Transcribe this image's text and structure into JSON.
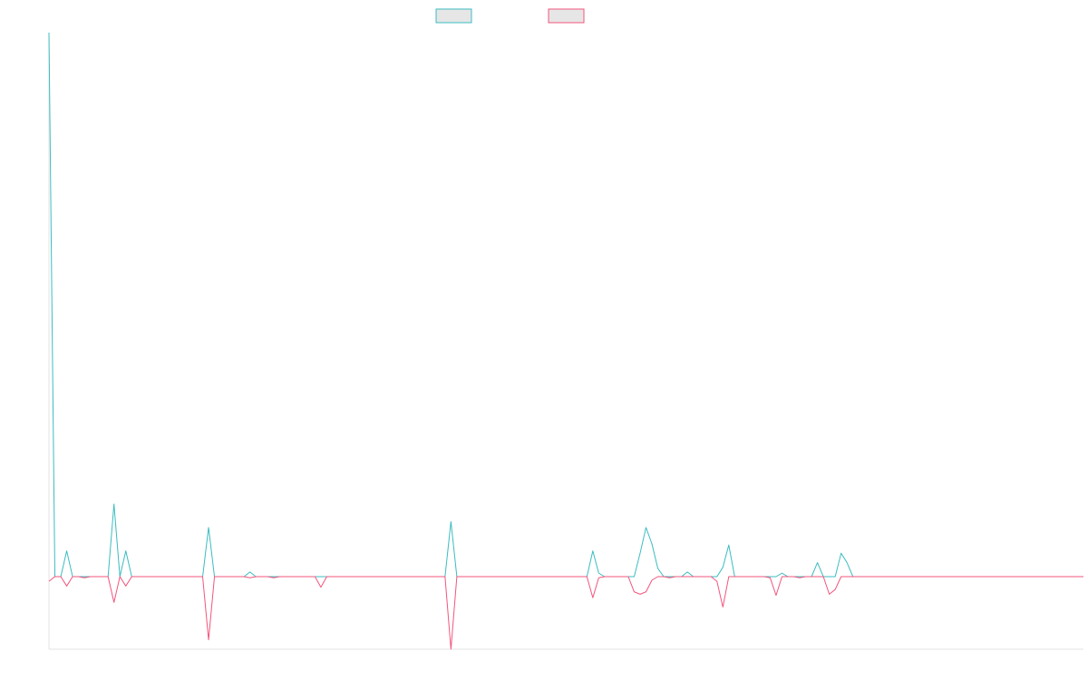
{
  "chart_data": {
    "type": "line",
    "title": "",
    "xlabel": "",
    "ylabel": "",
    "grid": false,
    "legend_position": "top-center",
    "ylim": [
      -62,
      465
    ],
    "x": [
      0,
      1,
      2,
      3,
      4,
      5,
      6,
      7,
      8,
      9,
      10,
      11,
      12,
      13,
      14,
      15,
      16,
      17,
      18,
      19,
      20,
      21,
      22,
      23,
      24,
      25,
      26,
      27,
      28,
      29,
      30,
      31,
      32,
      33,
      34,
      35,
      36,
      37,
      38,
      39,
      40,
      41,
      42,
      43,
      44,
      45,
      46,
      47,
      48,
      49,
      50,
      51,
      52,
      53,
      54,
      55,
      56,
      57,
      58,
      59,
      60,
      61,
      62,
      63,
      64,
      65,
      66,
      67,
      68,
      69,
      70,
      71,
      72,
      73,
      74,
      75,
      76,
      77,
      78,
      79,
      80,
      81,
      82,
      83,
      84,
      85,
      86,
      87,
      88,
      89,
      90,
      91,
      92,
      93,
      94,
      95,
      96,
      97,
      98,
      99,
      100,
      101,
      102,
      103,
      104,
      105,
      106,
      107,
      108,
      109,
      110,
      111,
      112,
      113,
      114,
      115,
      116,
      117,
      118,
      119,
      120,
      121,
      122,
      123,
      124,
      125,
      126,
      127,
      128,
      129,
      130,
      131,
      132,
      133,
      134,
      135,
      136,
      137,
      138,
      139,
      140,
      141,
      142,
      143,
      144,
      145,
      146,
      147,
      148,
      149,
      150,
      151,
      152,
      153,
      154,
      155,
      156,
      157,
      158,
      159,
      160,
      161,
      162,
      163,
      164,
      165,
      166,
      167,
      168,
      169,
      170,
      171,
      172,
      173,
      174,
      175
    ],
    "series": [
      {
        "color": "#3bbcc0",
        "values": [
          465,
          0,
          0,
          22,
          0,
          0,
          0,
          0,
          0,
          0,
          0,
          62,
          0,
          22,
          0,
          0,
          0,
          0,
          0,
          0,
          0,
          0,
          0,
          0,
          0,
          0,
          0,
          42,
          0,
          0,
          0,
          0,
          0,
          0,
          4,
          0,
          0,
          0,
          0,
          0,
          0,
          0,
          0,
          0,
          0,
          0,
          0,
          0,
          0,
          0,
          0,
          0,
          0,
          0,
          0,
          0,
          0,
          0,
          0,
          0,
          0,
          0,
          0,
          0,
          0,
          0,
          0,
          0,
          47,
          0,
          0,
          0,
          0,
          0,
          0,
          0,
          0,
          0,
          0,
          0,
          0,
          0,
          0,
          0,
          0,
          0,
          0,
          0,
          0,
          0,
          0,
          0,
          22,
          3,
          0,
          0,
          0,
          0,
          0,
          0,
          20,
          42,
          28,
          7,
          0,
          0,
          0,
          0,
          4,
          0,
          0,
          0,
          0,
          0,
          8,
          27,
          0,
          0,
          0,
          0,
          0,
          0,
          0,
          0,
          3,
          0,
          0,
          0,
          0,
          0,
          12,
          0,
          0,
          0,
          20,
          12,
          0,
          0,
          0,
          0,
          0,
          0,
          0,
          0,
          0,
          0,
          0,
          0,
          0,
          0,
          0,
          0,
          0,
          0,
          0,
          0,
          0,
          0,
          0,
          0,
          0,
          0,
          0,
          0,
          0,
          0,
          0,
          0,
          0,
          0,
          0,
          0,
          0,
          0,
          0,
          0
        ]
      },
      {
        "color": "#f2557c",
        "values": [
          -4,
          0,
          0,
          -8,
          0,
          0,
          -1,
          0,
          0,
          0,
          0,
          -22,
          0,
          -8,
          0,
          0,
          0,
          0,
          0,
          0,
          0,
          0,
          0,
          0,
          0,
          0,
          0,
          -54,
          0,
          0,
          0,
          0,
          0,
          0,
          -1,
          0,
          0,
          0,
          -1,
          0,
          0,
          0,
          0,
          0,
          0,
          0,
          -9,
          0,
          0,
          0,
          0,
          0,
          0,
          0,
          0,
          0,
          0,
          0,
          0,
          0,
          0,
          0,
          0,
          0,
          0,
          0,
          0,
          0,
          -62,
          0,
          0,
          0,
          0,
          0,
          0,
          0,
          0,
          0,
          0,
          0,
          0,
          0,
          0,
          0,
          0,
          0,
          0,
          0,
          0,
          0,
          0,
          0,
          -18,
          -1,
          0,
          0,
          0,
          0,
          0,
          -13,
          -15,
          -13,
          -3,
          0,
          0,
          -1,
          0,
          0,
          0,
          0,
          0,
          0,
          0,
          -4,
          -26,
          0,
          0,
          0,
          0,
          0,
          0,
          0,
          -1,
          -16,
          0,
          0,
          0,
          -1,
          0,
          0,
          0,
          0,
          -15,
          -11,
          0,
          0,
          0,
          0,
          0,
          0,
          0,
          0,
          0,
          0,
          0,
          0,
          0,
          0,
          0,
          0,
          0,
          0,
          0,
          0,
          0,
          0,
          0,
          0,
          0,
          0,
          0,
          0,
          0,
          0,
          0,
          0,
          0,
          0,
          0,
          0,
          0,
          0,
          0,
          0,
          0,
          0
        ]
      }
    ]
  }
}
